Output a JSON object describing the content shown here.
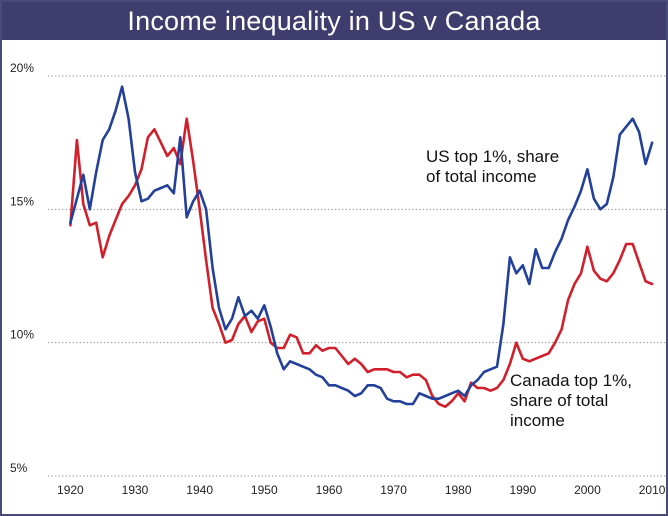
{
  "chart_data": {
    "type": "line",
    "title": "Income inequality in US v Canada",
    "xlabel": "",
    "ylabel": "",
    "xlim": [
      1917,
      2012
    ],
    "ylim": [
      5,
      20
    ],
    "xticks": [
      "1920",
      "1930",
      "1940",
      "1950",
      "1960",
      "1970",
      "1980",
      "1990",
      "2000",
      "2010"
    ],
    "yticks": [
      "20%",
      "15%",
      "10%",
      "5%"
    ],
    "grid": "horizontal dotted",
    "colors": {
      "us": "#23409a",
      "canada": "#d1202b",
      "title_bg": "#3f3d6e"
    },
    "annotations": {
      "us": [
        "US top 1%, share",
        "of total income"
      ],
      "canada": [
        "Canada top 1%,",
        "share of total",
        "income"
      ]
    },
    "series": [
      {
        "key": "us",
        "x": [
          1920,
          1921,
          1922,
          1923,
          1924,
          1925,
          1926,
          1927,
          1928,
          1929,
          1930,
          1931,
          1932,
          1933,
          1934,
          1935,
          1936,
          1937,
          1938,
          1939,
          1940,
          1941,
          1942,
          1943,
          1944,
          1945,
          1946,
          1947,
          1948,
          1949,
          1950,
          1951,
          1952,
          1953,
          1954,
          1955,
          1956,
          1957,
          1958,
          1959,
          1960,
          1961,
          1962,
          1963,
          1964,
          1965,
          1966,
          1967,
          1968,
          1969,
          1970,
          1971,
          1972,
          1973,
          1974,
          1975,
          1976,
          1977,
          1978,
          1979,
          1980,
          1981,
          1982,
          1983,
          1984,
          1985,
          1986,
          1987,
          1988,
          1989,
          1990,
          1991,
          1992,
          1993,
          1994,
          1995,
          1996,
          1997,
          1998,
          1999,
          2000,
          2001,
          2002,
          2003,
          2004,
          2005,
          2006,
          2007,
          2008,
          2009,
          2010
        ],
        "values": [
          14.5,
          15.4,
          16.3,
          15.0,
          16.4,
          17.6,
          18.0,
          18.7,
          19.6,
          18.4,
          16.4,
          15.3,
          15.4,
          15.7,
          15.8,
          15.9,
          15.6,
          17.7,
          14.7,
          15.3,
          15.7,
          15.0,
          12.8,
          11.3,
          10.5,
          10.9,
          11.7,
          11.0,
          11.2,
          10.9,
          11.4,
          10.6,
          9.6,
          9.0,
          9.3,
          9.2,
          9.1,
          9.0,
          8.8,
          8.7,
          8.4,
          8.4,
          8.3,
          8.2,
          8.0,
          8.1,
          8.4,
          8.4,
          8.3,
          7.9,
          7.8,
          7.8,
          7.7,
          7.7,
          8.1,
          8.0,
          7.9,
          7.9,
          8.0,
          8.1,
          8.2,
          8.0,
          8.4,
          8.6,
          8.9,
          9.0,
          9.1,
          10.7,
          13.2,
          12.6,
          12.9,
          12.2,
          13.5,
          12.8,
          12.8,
          13.4,
          13.9,
          14.6,
          15.1,
          15.7,
          16.5,
          15.4,
          15.0,
          15.2,
          16.2,
          17.8,
          18.1,
          18.4,
          17.9,
          16.7,
          17.5
        ]
      },
      {
        "key": "canada",
        "x": [
          1920,
          1921,
          1922,
          1923,
          1924,
          1925,
          1926,
          1927,
          1928,
          1929,
          1930,
          1931,
          1932,
          1933,
          1934,
          1935,
          1936,
          1937,
          1938,
          1939,
          1940,
          1941,
          1942,
          1943,
          1944,
          1945,
          1946,
          1947,
          1948,
          1949,
          1950,
          1951,
          1952,
          1953,
          1954,
          1955,
          1956,
          1957,
          1958,
          1959,
          1960,
          1961,
          1962,
          1963,
          1964,
          1965,
          1966,
          1967,
          1968,
          1969,
          1970,
          1971,
          1972,
          1973,
          1974,
          1975,
          1976,
          1977,
          1978,
          1979,
          1980,
          1981,
          1982,
          1983,
          1984,
          1985,
          1986,
          1987,
          1988,
          1989,
          1990,
          1991,
          1992,
          1993,
          1994,
          1995,
          1996,
          1997,
          1998,
          1999,
          2000,
          2001,
          2002,
          2003,
          2004,
          2005,
          2006,
          2007,
          2008,
          2009,
          2010
        ],
        "values": [
          14.4,
          17.6,
          15.2,
          14.4,
          14.5,
          13.2,
          14.0,
          14.6,
          15.2,
          15.5,
          15.9,
          16.5,
          17.7,
          18.0,
          17.5,
          17.0,
          17.3,
          16.7,
          18.4,
          16.8,
          15.0,
          13.1,
          11.3,
          10.7,
          10.0,
          10.1,
          10.7,
          11.0,
          10.4,
          10.8,
          10.9,
          10.0,
          9.8,
          9.8,
          10.3,
          10.2,
          9.6,
          9.6,
          9.9,
          9.7,
          9.8,
          9.8,
          9.5,
          9.2,
          9.4,
          9.2,
          8.9,
          9.0,
          9.0,
          9.0,
          8.9,
          8.9,
          8.7,
          8.8,
          8.8,
          8.6,
          8.0,
          7.7,
          7.6,
          7.8,
          8.1,
          7.8,
          8.5,
          8.3,
          8.3,
          8.2,
          8.3,
          8.6,
          9.2,
          10.0,
          9.4,
          9.3,
          9.4,
          9.5,
          9.6,
          10.0,
          10.5,
          11.6,
          12.2,
          12.6,
          13.6,
          12.7,
          12.4,
          12.3,
          12.6,
          13.1,
          13.7,
          13.7,
          13.0,
          12.3,
          12.2
        ]
      }
    ]
  }
}
